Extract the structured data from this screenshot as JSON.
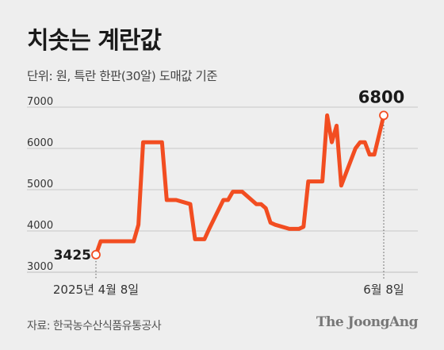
{
  "title": "치솟는 계란값",
  "subtitle": "단위: 원, 특란 한판(30알) 도매값 기준",
  "source": "자료: 한국농수산식품유통공사",
  "logo": "The JoongAng",
  "colors": {
    "line": "#f24d21",
    "grid": "#c8c8c8",
    "background": "#eeeeee"
  },
  "chart_data": {
    "type": "line",
    "title": "치솟는 계란값",
    "ylabel": "",
    "xlabel": "",
    "ylim": [
      3000,
      7000
    ],
    "yticks": [
      3000,
      4000,
      5000,
      6000,
      7000
    ],
    "grid": true,
    "x_tick_labels": [
      "2025년 4월 8일",
      "6월 8일"
    ],
    "x": [
      "2025-04-08",
      "2025-04-09",
      "2025-04-10",
      "2025-04-11",
      "2025-04-14",
      "2025-04-15",
      "2025-04-16",
      "2025-04-17",
      "2025-04-18",
      "2025-04-21",
      "2025-04-22",
      "2025-04-23",
      "2025-04-24",
      "2025-04-25",
      "2025-04-28",
      "2025-04-29",
      "2025-04-30",
      "2025-05-01",
      "2025-05-02",
      "2025-05-05",
      "2025-05-06",
      "2025-05-07",
      "2025-05-08",
      "2025-05-09",
      "2025-05-12",
      "2025-05-13",
      "2025-05-14",
      "2025-05-15",
      "2025-05-16",
      "2025-05-19",
      "2025-05-20",
      "2025-05-21",
      "2025-05-22",
      "2025-05-23",
      "2025-05-26",
      "2025-05-27",
      "2025-05-28",
      "2025-05-29",
      "2025-05-30",
      "2025-06-02",
      "2025-06-03",
      "2025-06-04",
      "2025-06-05",
      "2025-06-06",
      "2025-06-08"
    ],
    "series": [
      {
        "values": [
          3425,
          3750,
          3750,
          3750,
          3750,
          3750,
          3750,
          4150,
          6150,
          6150,
          6150,
          4750,
          4750,
          4750,
          4650,
          3800,
          3800,
          3800,
          4050,
          4750,
          4750,
          4950,
          4950,
          4950,
          4650,
          4650,
          4550,
          4200,
          4150,
          4050,
          4050,
          4050,
          4100,
          5200,
          5200,
          6800,
          6150,
          6550,
          5100,
          6000,
          6150,
          6150,
          5850,
          5850,
          6800
        ],
        "start_label": "3425",
        "end_label": "6800"
      }
    ]
  }
}
